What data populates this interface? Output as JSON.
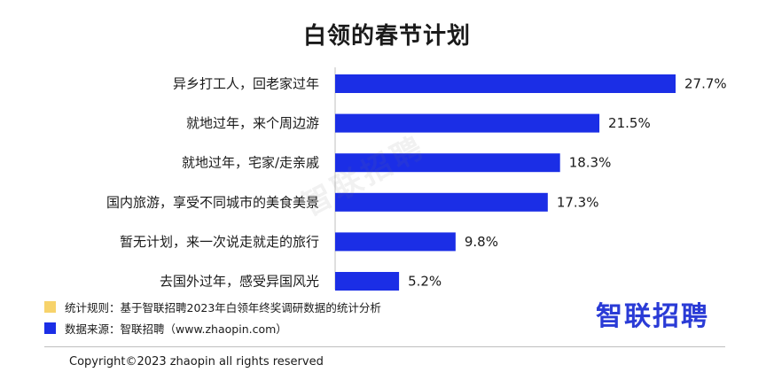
{
  "title": "白领的春节计划",
  "watermark": "智联招聘",
  "chart_data": {
    "type": "bar",
    "orientation": "horizontal",
    "categories": [
      "异乡打工人，回老家过年",
      "就地过年，来个周边游",
      "就地过年，宅家/走亲戚",
      "国内旅游，享受不同城市的美食美景",
      "暂无计划，来一次说走就走的旅行",
      "去国外过年，感受异国风光"
    ],
    "values": [
      27.7,
      21.5,
      18.3,
      17.3,
      9.8,
      5.2
    ],
    "value_labels": [
      "27.7%",
      "21.5%",
      "18.3%",
      "17.3%",
      "9.8%",
      "5.2%"
    ],
    "unit": "%",
    "xlim": [
      0,
      27.7
    ],
    "bar_color": "#1b2ee6",
    "grid": false,
    "legend": "none"
  },
  "notes": [
    {
      "text": "统计规则：基于智联招聘2023年白领年终奖调研数据的统计分析",
      "color": "#f7d36b"
    },
    {
      "text": "数据来源：智联招聘（www.zhaopin.com）",
      "color": "#1b2ee6"
    }
  ],
  "logo_text": "智联招聘",
  "copyright": "Copyright©2023 zhaopin all rights reserved"
}
